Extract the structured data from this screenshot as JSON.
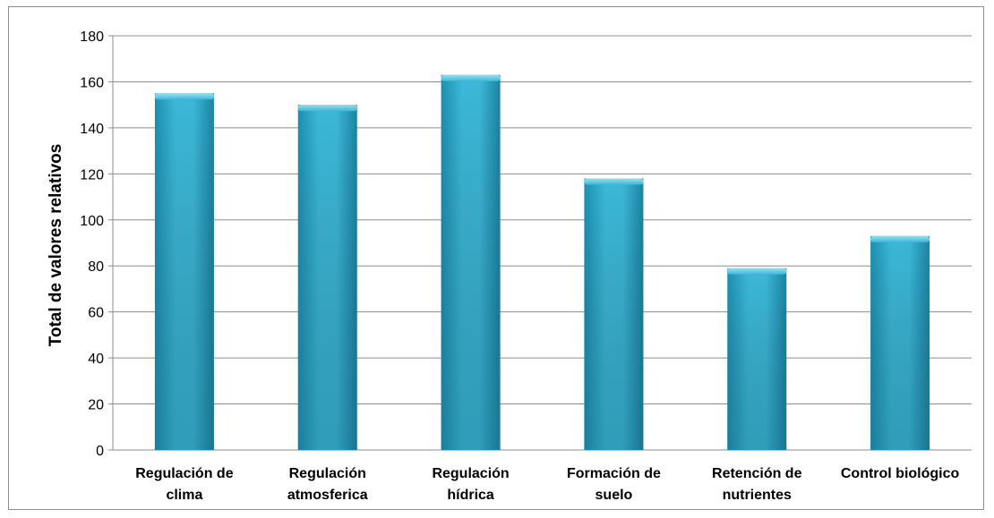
{
  "chart_data": {
    "type": "bar",
    "categories": [
      [
        "Regulación de",
        "clima"
      ],
      [
        "Regulación",
        "atmosferica"
      ],
      [
        "Regulación",
        "hídrica"
      ],
      [
        "Formación de",
        "suelo"
      ],
      [
        "Retención de",
        "nutrientes"
      ],
      [
        "Control biológico"
      ]
    ],
    "values": [
      155,
      150,
      163,
      118,
      79,
      93
    ],
    "title": "",
    "xlabel": "",
    "ylabel": "Total de valores relativos",
    "ylim": [
      0,
      180
    ],
    "yticks": [
      0,
      20,
      40,
      60,
      80,
      100,
      120,
      140,
      160,
      180
    ],
    "grid": true,
    "legend": "none",
    "colors": {
      "bar": "#2aa4c6",
      "bar_light": "#52c6e4",
      "bar_dark": "#1b7f9d",
      "grid": "#8c8c8c",
      "axis": "#8c8c8c"
    }
  }
}
